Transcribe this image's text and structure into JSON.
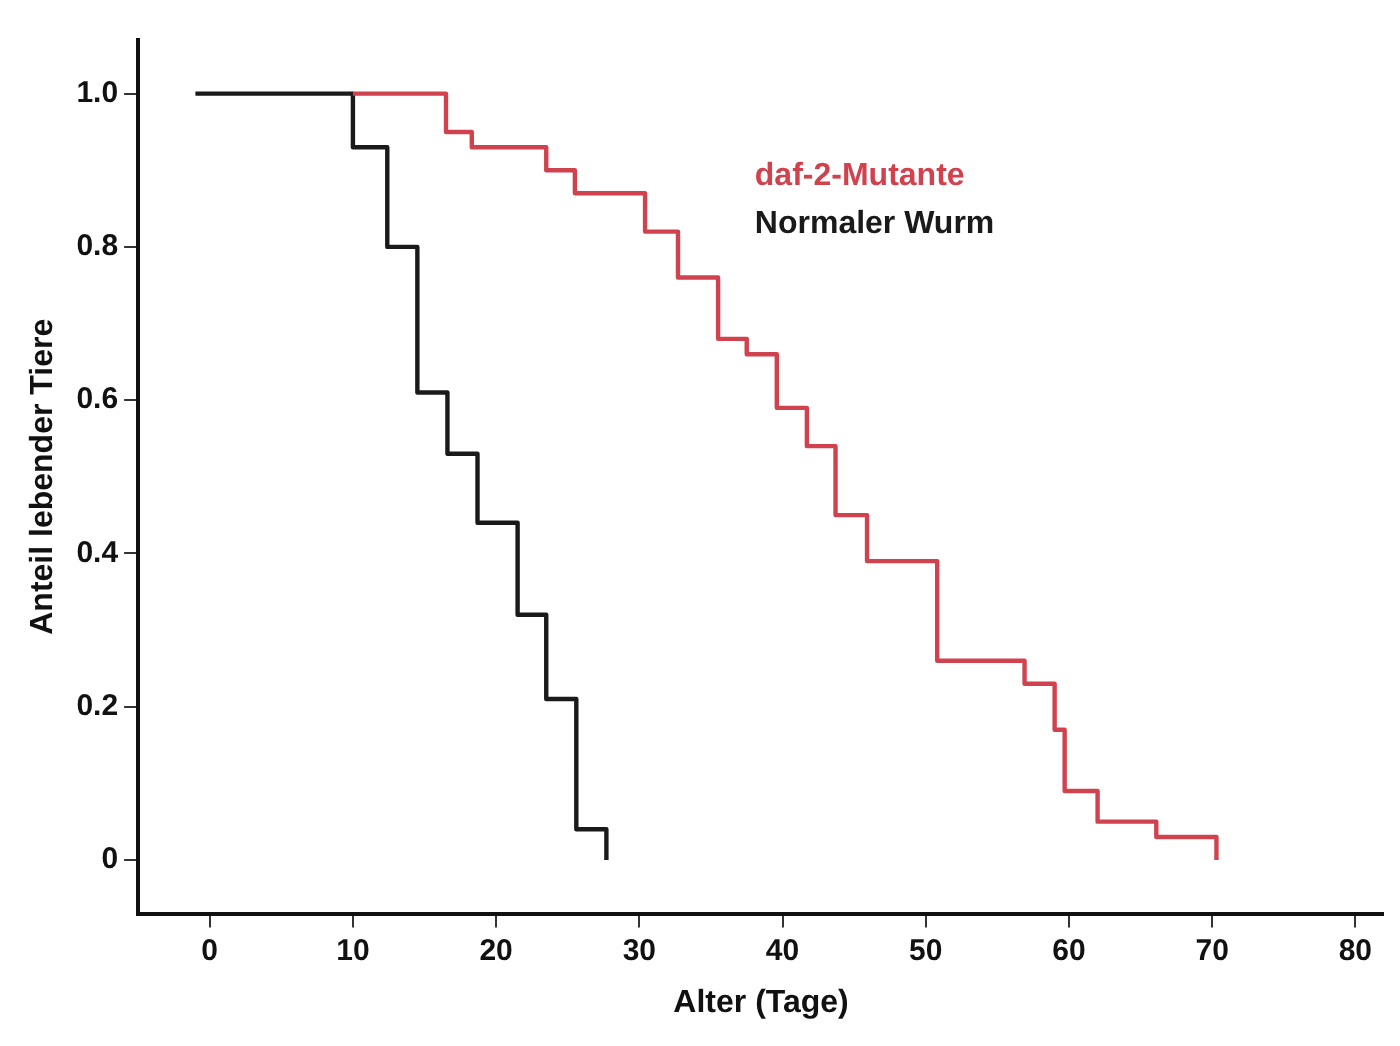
{
  "chart_data": {
    "type": "step",
    "xlabel": "Alter (Tage)",
    "ylabel": "Anteil lebender Tiere",
    "xlim": [
      -5,
      82
    ],
    "ylim": [
      -0.07,
      1.07
    ],
    "xticks": [
      0,
      10,
      20,
      30,
      40,
      50,
      60,
      70,
      80
    ],
    "yticks": [
      0,
      0.2,
      0.4,
      0.6,
      0.8,
      {
        "value": 1,
        "label": "1.0"
      }
    ],
    "grid": false,
    "series": [
      {
        "name": "daf-2-Mutante",
        "color": "#d0434e",
        "x": [
          10,
          16.5,
          18.3,
          23.5,
          25.5,
          30.4,
          32.7,
          35.5,
          37.5,
          39.6,
          41.7,
          43.7,
          45.9,
          50.8,
          56.9,
          59,
          59.7,
          62,
          66.1,
          70.3
        ],
        "values": [
          1,
          0.95,
          0.93,
          0.9,
          0.87,
          0.82,
          0.76,
          0.68,
          0.66,
          0.59,
          0.54,
          0.45,
          0.39,
          0.26,
          0.23,
          0.17,
          0.09,
          0.05,
          0.03,
          0
        ]
      },
      {
        "name": "Normaler Wurm",
        "color": "#1a1a1a",
        "x": [
          -1,
          10,
          12.4,
          14.5,
          16.6,
          18.7,
          21.5,
          23.5,
          25.6,
          27.7
        ],
        "values": [
          1,
          0.93,
          0.8,
          0.61,
          0.53,
          0.44,
          0.32,
          0.21,
          0.04,
          0
        ]
      }
    ]
  }
}
